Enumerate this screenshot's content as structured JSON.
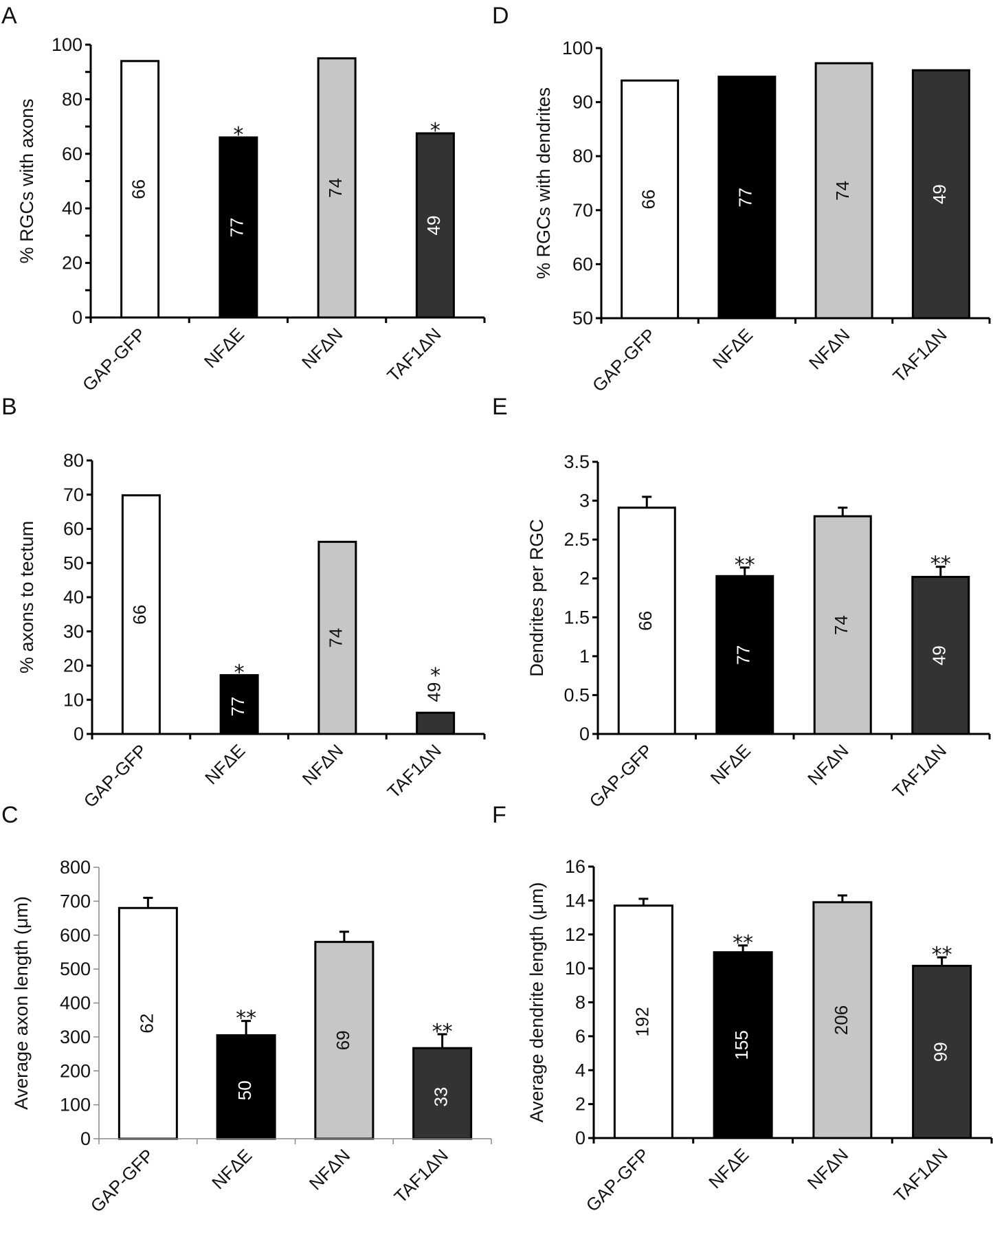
{
  "figure": {
    "categories": [
      "GAP-GFP",
      "NFΔE",
      "NFΔN",
      "TAF1ΔN"
    ],
    "bar_colors": [
      "#ffffff",
      "#000000",
      "#c6c6c6",
      "#333333"
    ],
    "n_label_colors": [
      "#111111",
      "#ffffff",
      "#111111",
      "#ffffff"
    ]
  },
  "chart_data": [
    {
      "panel": "A",
      "type": "bar",
      "title": "",
      "xlabel": "",
      "ylabel": "% RGCs with axons",
      "categories": [
        "GAP-GFP",
        "NFΔE",
        "NFΔN",
        "TAF1ΔN"
      ],
      "values": [
        94,
        66,
        95,
        67.5
      ],
      "errors": null,
      "n_labels": [
        "66",
        "77",
        "74",
        "49"
      ],
      "significance": [
        "",
        "*",
        "",
        "*"
      ],
      "ylim": [
        0,
        100
      ],
      "yticks": [
        0,
        20,
        40,
        60,
        80,
        100
      ],
      "yticks_minor": [
        10,
        30,
        50,
        70,
        90
      ],
      "grid": false
    },
    {
      "panel": "B",
      "type": "bar",
      "title": "",
      "xlabel": "",
      "ylabel": "% axons to tectum",
      "categories": [
        "GAP-GFP",
        "NFΔE",
        "NFΔN",
        "TAF1ΔN"
      ],
      "values": [
        69.8,
        17.2,
        56.2,
        6.2
      ],
      "errors": null,
      "n_labels": [
        "66",
        "77",
        "74",
        "49"
      ],
      "n_label_above_bar": [
        false,
        false,
        false,
        true
      ],
      "significance": [
        "",
        "*",
        "",
        "*"
      ],
      "ylim": [
        0,
        80
      ],
      "yticks": [
        0,
        10,
        20,
        30,
        40,
        50,
        60,
        70,
        80
      ],
      "grid": false
    },
    {
      "panel": "C",
      "type": "bar",
      "title": "",
      "xlabel": "",
      "ylabel": "Average axon length (μm)",
      "categories": [
        "GAP-GFP",
        "NFΔE",
        "NFΔN",
        "TAF1ΔN"
      ],
      "values": [
        680,
        305,
        580,
        267
      ],
      "errors": [
        30,
        42,
        30,
        41
      ],
      "n_labels": [
        "62",
        "50",
        "69",
        "33"
      ],
      "significance": [
        "",
        "**",
        "",
        "**"
      ],
      "ylim": [
        0,
        800
      ],
      "yticks": [
        0,
        100,
        200,
        300,
        400,
        500,
        600,
        700,
        800
      ],
      "grid": false
    },
    {
      "panel": "D",
      "type": "bar",
      "title": "",
      "xlabel": "",
      "ylabel": "% RGCs with dendrites",
      "categories": [
        "GAP-GFP",
        "NFΔE",
        "NFΔN",
        "TAF1ΔN"
      ],
      "values": [
        94,
        94.7,
        97.2,
        95.9
      ],
      "errors": null,
      "n_labels": [
        "66",
        "77",
        "74",
        "49"
      ],
      "significance": [
        "",
        "",
        "",
        ""
      ],
      "ylim": [
        50,
        100
      ],
      "yticks": [
        50,
        60,
        70,
        80,
        90,
        100
      ],
      "grid": false
    },
    {
      "panel": "E",
      "type": "bar",
      "title": "",
      "xlabel": "",
      "ylabel": "Dendrites per RGC",
      "categories": [
        "GAP-GFP",
        "NFΔE",
        "NFΔN",
        "TAF1ΔN"
      ],
      "values": [
        2.91,
        2.03,
        2.8,
        2.02
      ],
      "errors": [
        0.14,
        0.11,
        0.11,
        0.13
      ],
      "n_labels": [
        "66",
        "77",
        "74",
        "49"
      ],
      "significance": [
        "",
        "**",
        "",
        "**"
      ],
      "ylim": [
        0,
        3.5
      ],
      "yticks": [
        0,
        0.5,
        1,
        1.5,
        2,
        2.5,
        3,
        3.5
      ],
      "ytick_labels": [
        "0",
        "0.5",
        "1",
        "1.5",
        "2",
        "2.5",
        "3",
        "3.5"
      ],
      "grid": false
    },
    {
      "panel": "F",
      "type": "bar",
      "title": "",
      "xlabel": "",
      "ylabel": "Average dendrite length (μm)",
      "categories": [
        "GAP-GFP",
        "NFΔE",
        "NFΔN",
        "TAF1ΔN"
      ],
      "values": [
        13.7,
        10.95,
        13.9,
        10.15
      ],
      "errors": [
        0.4,
        0.4,
        0.4,
        0.5
      ],
      "n_labels": [
        "192",
        "155",
        "206",
        "99"
      ],
      "significance": [
        "",
        "**",
        "",
        "**"
      ],
      "ylim": [
        0,
        16
      ],
      "yticks": [
        0,
        2,
        4,
        6,
        8,
        10,
        12,
        14,
        16
      ],
      "grid": false
    }
  ]
}
